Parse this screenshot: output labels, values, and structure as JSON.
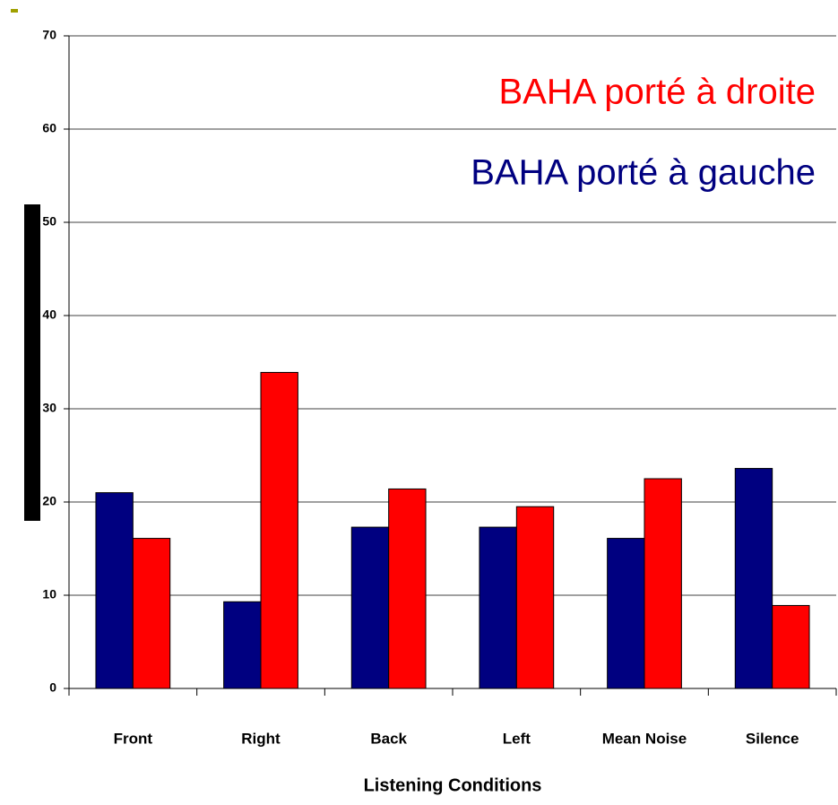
{
  "chart_data": {
    "type": "bar",
    "x_label": "Listening Conditions",
    "categories": [
      "Front",
      "Right",
      "Back",
      "Left",
      "Mean Noise",
      "Silence"
    ],
    "series": [
      {
        "name": "BAHA porté à gauche",
        "color": "#000080",
        "values": [
          21,
          9.3,
          17.3,
          17.3,
          16.1,
          23.6
        ]
      },
      {
        "name": "BAHA porté à droite",
        "color": "#ff0000",
        "values": [
          16.1,
          33.9,
          21.4,
          19.5,
          22.5,
          8.9
        ]
      }
    ],
    "ylim": [
      0,
      70
    ],
    "yticks": [
      0,
      10,
      20,
      30,
      40,
      50,
      60,
      70
    ],
    "grid": true
  }
}
